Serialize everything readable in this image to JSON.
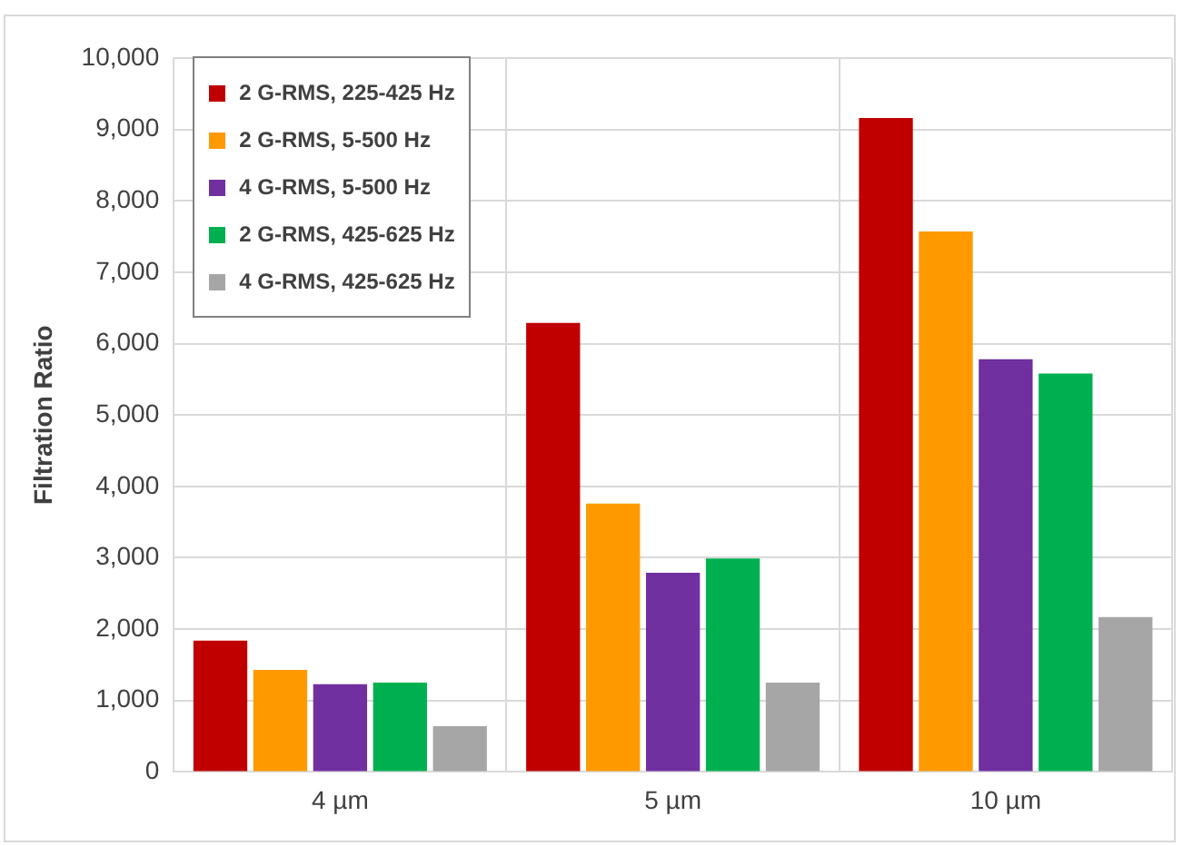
{
  "chart_data": {
    "type": "bar",
    "ylabel": "Filtration Ratio",
    "categories": [
      "4 µm",
      "5 µm",
      "10 µm"
    ],
    "series": [
      {
        "name": "2 G-RMS, 225-425 Hz",
        "color": "#c00000",
        "values": [
          1840,
          6290,
          9160
        ]
      },
      {
        "name": "2 G-RMS, 5-500 Hz",
        "color": "#ff9900",
        "values": [
          1430,
          3760,
          7570
        ]
      },
      {
        "name": "4 G-RMS, 5-500 Hz",
        "color": "#7030a0",
        "values": [
          1230,
          2790,
          5780
        ]
      },
      {
        "name": "2 G-RMS, 425-625 Hz",
        "color": "#00b050",
        "values": [
          1250,
          2990,
          5580
        ]
      },
      {
        "name": "4 G-RMS, 425-625 Hz",
        "color": "#a6a6a6",
        "values": [
          640,
          1250,
          2170
        ]
      }
    ],
    "ylim": [
      0,
      10000
    ],
    "yticks": [
      {
        "value": 0,
        "label": "0"
      },
      {
        "value": 1000,
        "label": "1,000"
      },
      {
        "value": 2000,
        "label": "2,000"
      },
      {
        "value": 3000,
        "label": "3,000"
      },
      {
        "value": 4000,
        "label": "4,000"
      },
      {
        "value": 5000,
        "label": "5,000"
      },
      {
        "value": 6000,
        "label": "6,000"
      },
      {
        "value": 7000,
        "label": "7,000"
      },
      {
        "value": 8000,
        "label": "8,000"
      },
      {
        "value": 9000,
        "label": "9,000"
      },
      {
        "value": 10000,
        "label": "10,000"
      }
    ],
    "grid": true,
    "legend": "top left"
  }
}
